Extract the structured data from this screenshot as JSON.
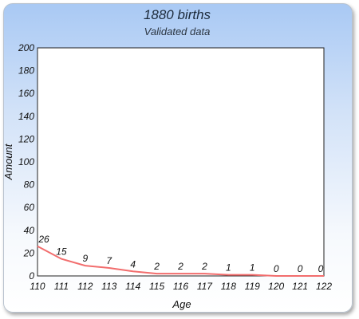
{
  "chart_data": {
    "type": "line",
    "title": "1880 births",
    "subtitle": "Validated data",
    "xlabel": "Age",
    "ylabel": "Amount",
    "categories": [
      "110",
      "111",
      "112",
      "113",
      "114",
      "115",
      "116",
      "117",
      "118",
      "119",
      "120",
      "121",
      "122"
    ],
    "values": [
      26,
      15,
      9,
      7,
      4,
      2,
      2,
      2,
      1,
      1,
      0,
      0,
      0
    ],
    "data_labels": [
      "26",
      "15",
      "9",
      "7",
      "4",
      "2",
      "2",
      "2",
      "1",
      "1",
      "0",
      "0",
      "0"
    ],
    "yticks": [
      "0",
      "20",
      "40",
      "60",
      "80",
      "100",
      "120",
      "140",
      "160",
      "180",
      "200"
    ],
    "ylim": [
      0,
      200
    ],
    "grid": false,
    "legend": "none",
    "colors": {
      "line": "#f26d6d",
      "plot_bg": "#ffffff",
      "axis": "#222222"
    }
  }
}
